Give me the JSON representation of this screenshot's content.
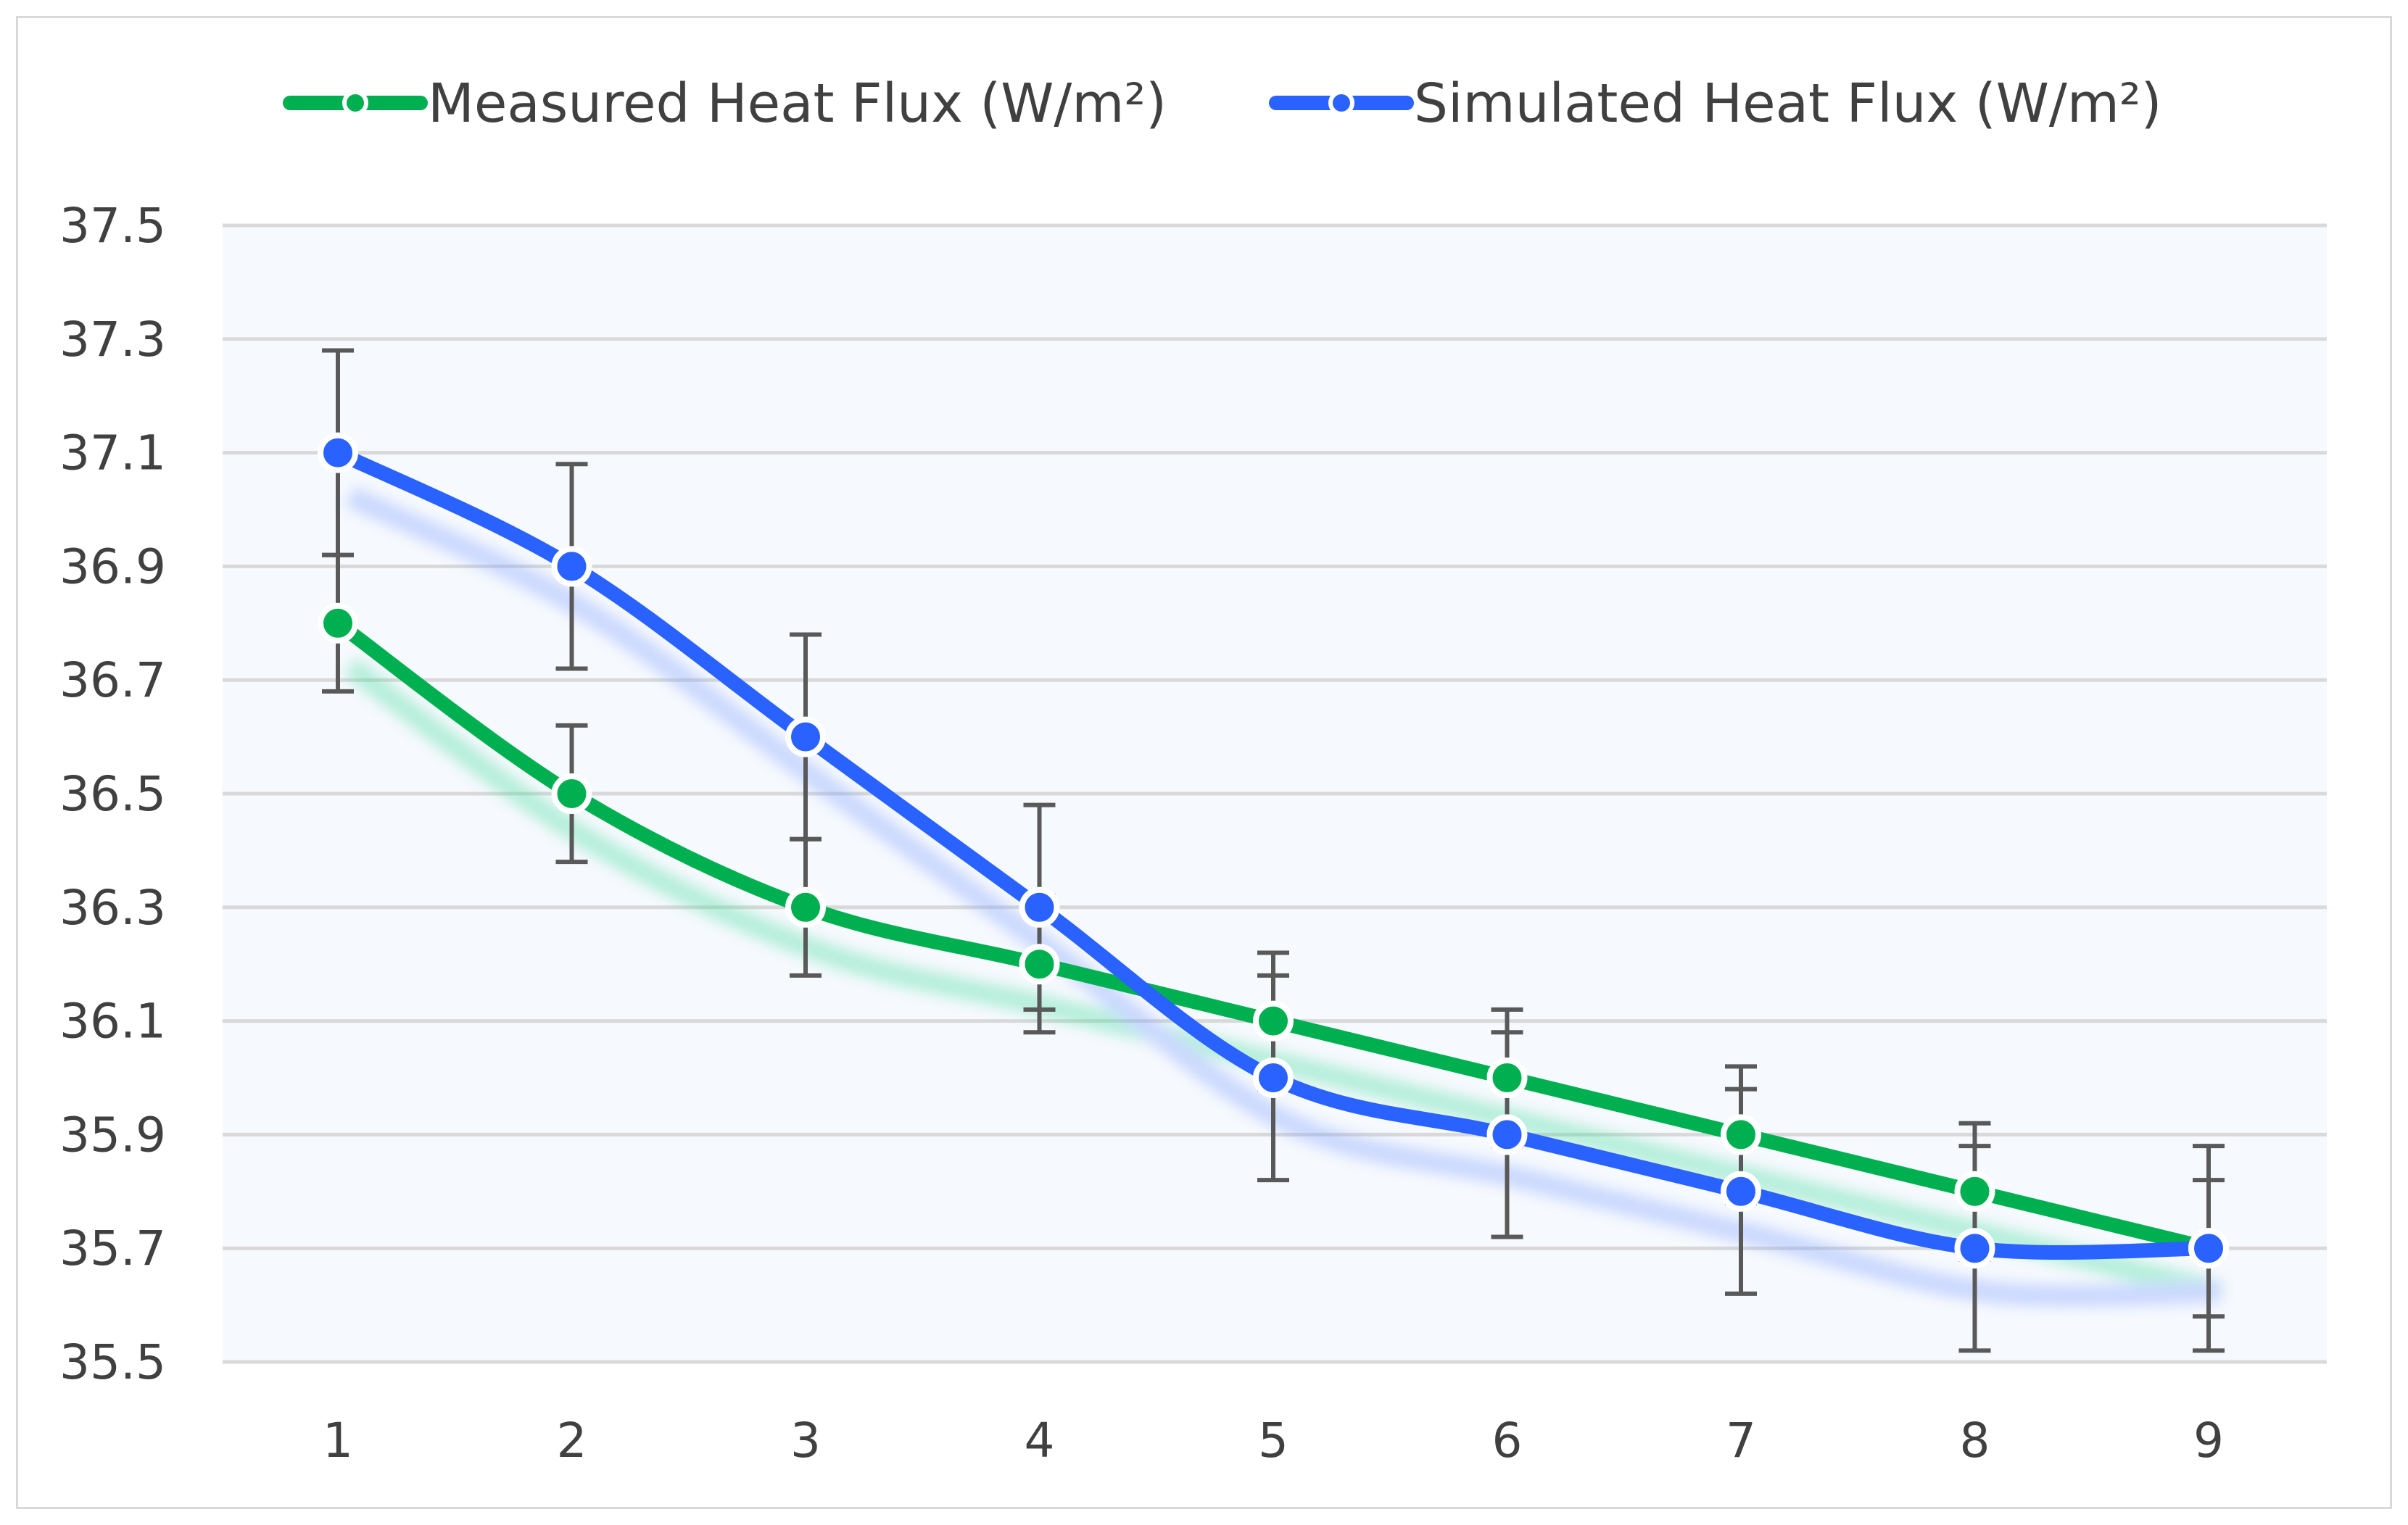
{
  "chart_data": {
    "type": "line",
    "title": "",
    "xlabel": "",
    "ylabel": "",
    "categories": [
      "1",
      "2",
      "3",
      "4",
      "5",
      "6",
      "7",
      "8",
      "9"
    ],
    "ylim": [
      35.5,
      37.5
    ],
    "yticks": [
      "35.5",
      "35.7",
      "35.9",
      "36.1",
      "36.3",
      "36.5",
      "36.7",
      "36.9",
      "37.1",
      "37.3",
      "37.5"
    ],
    "grid": true,
    "legend_position": "top",
    "smooth": true,
    "series": [
      {
        "name": "Measured Heat Flux (W/m²)",
        "color": "#00b050",
        "values": [
          36.8,
          36.5,
          36.3,
          36.2,
          36.1,
          36.0,
          35.9,
          35.8,
          35.7
        ],
        "error": 0.12
      },
      {
        "name": "Simulated Heat Flux (W/m²)",
        "color": "#2962ff",
        "values": [
          37.1,
          36.9,
          36.6,
          36.3,
          36.0,
          35.9,
          35.8,
          35.7,
          35.7
        ],
        "error": 0.18
      }
    ]
  }
}
